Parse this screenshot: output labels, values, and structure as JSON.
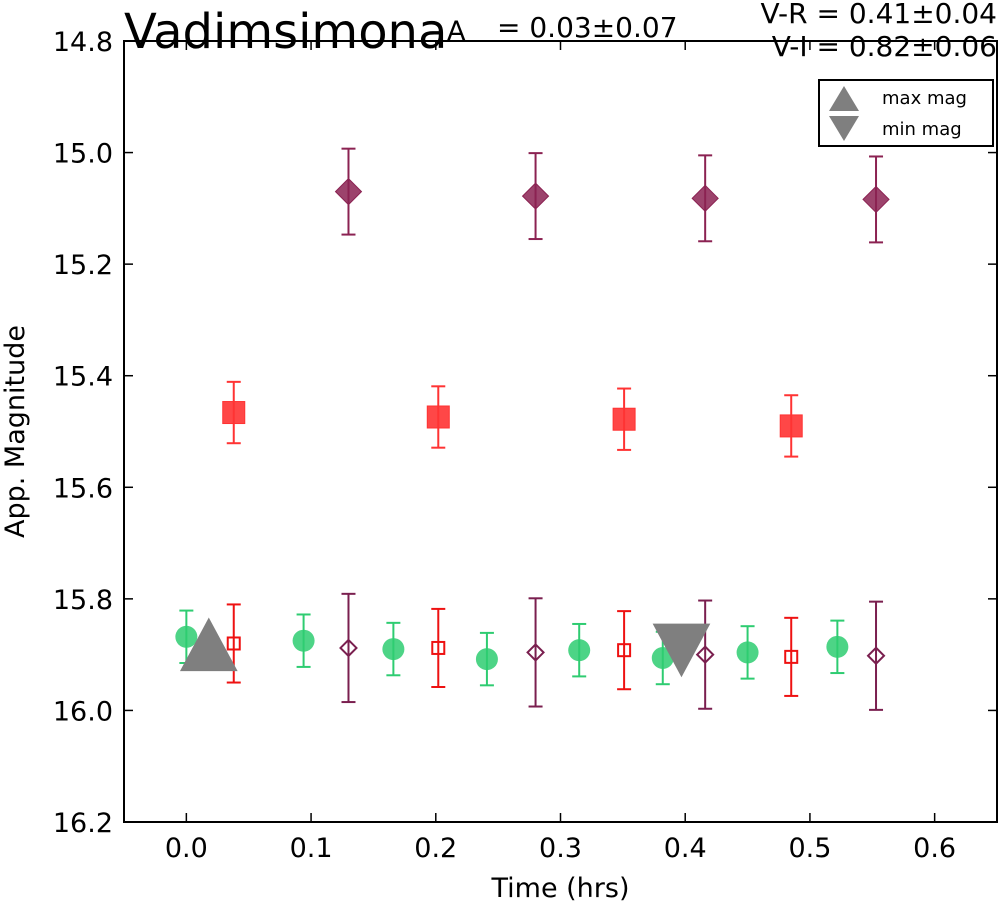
{
  "header": {
    "object_name": "Vadimsimona",
    "amp_superscript": "A",
    "amplitude": "= 0.03±0.07",
    "v_r": "V-R = 0.41±0.04",
    "v_i": "V-I  = 0.82±0.06"
  },
  "chart_data": {
    "type": "scatter",
    "xlabel": "Time (hrs)",
    "ylabel": "App. Magnitude",
    "xlim": [
      -0.05,
      0.65
    ],
    "ylim": [
      16.2,
      14.8
    ],
    "y_inverted": true,
    "xticks": [
      "0.0",
      "0.1",
      "0.2",
      "0.3",
      "0.4",
      "0.5",
      "0.6"
    ],
    "yticks": [
      "14.8",
      "15.0",
      "15.2",
      "15.4",
      "15.6",
      "15.8",
      "16.0",
      "16.2"
    ],
    "grid": false,
    "legend_position": "top-right",
    "legend": [
      {
        "label": "max mag",
        "marker": "triangle-up",
        "color": "#7f7f7f"
      },
      {
        "label": "min mag",
        "marker": "triangle-down",
        "color": "#7f7f7f"
      }
    ],
    "series": [
      {
        "marker": "filled-circle",
        "color": "#2ecc71",
        "points": [
          {
            "x": 0.0,
            "y": 15.868,
            "err": 0.047
          },
          {
            "x": 0.094,
            "y": 15.875,
            "err": 0.047
          },
          {
            "x": 0.166,
            "y": 15.89,
            "err": 0.047
          },
          {
            "x": 0.241,
            "y": 15.908,
            "err": 0.047
          },
          {
            "x": 0.315,
            "y": 15.892,
            "err": 0.047
          },
          {
            "x": 0.382,
            "y": 15.906,
            "err": 0.047
          },
          {
            "x": 0.45,
            "y": 15.896,
            "err": 0.047
          },
          {
            "x": 0.522,
            "y": 15.886,
            "err": 0.047
          }
        ]
      },
      {
        "marker": "open-square",
        "color": "#ee1111",
        "points": [
          {
            "x": 0.038,
            "y": 15.88,
            "err": 0.07
          },
          {
            "x": 0.202,
            "y": 15.888,
            "err": 0.07
          },
          {
            "x": 0.351,
            "y": 15.892,
            "err": 0.07
          },
          {
            "x": 0.485,
            "y": 15.904,
            "err": 0.07
          }
        ]
      },
      {
        "marker": "open-diamond",
        "color": "#7a1f4f",
        "points": [
          {
            "x": 0.13,
            "y": 15.888,
            "err": 0.097
          },
          {
            "x": 0.28,
            "y": 15.896,
            "err": 0.097
          },
          {
            "x": 0.416,
            "y": 15.9,
            "err": 0.097
          },
          {
            "x": 0.553,
            "y": 15.902,
            "err": 0.097
          }
        ]
      },
      {
        "marker": "filled-square",
        "color": "#ff3333",
        "points": [
          {
            "x": 0.038,
            "y": 15.466,
            "err": 0.055
          },
          {
            "x": 0.202,
            "y": 15.474,
            "err": 0.055
          },
          {
            "x": 0.351,
            "y": 15.478,
            "err": 0.055
          },
          {
            "x": 0.485,
            "y": 15.49,
            "err": 0.055
          }
        ]
      },
      {
        "marker": "filled-diamond",
        "color": "#8b2252",
        "points": [
          {
            "x": 0.13,
            "y": 15.07,
            "err": 0.077
          },
          {
            "x": 0.28,
            "y": 15.078,
            "err": 0.077
          },
          {
            "x": 0.416,
            "y": 15.082,
            "err": 0.077
          },
          {
            "x": 0.553,
            "y": 15.084,
            "err": 0.077
          }
        ]
      }
    ],
    "extrema": [
      {
        "kind": "max",
        "x": 0.018,
        "y": 15.882
      },
      {
        "kind": "min",
        "x": 0.397,
        "y": 15.892
      }
    ]
  }
}
